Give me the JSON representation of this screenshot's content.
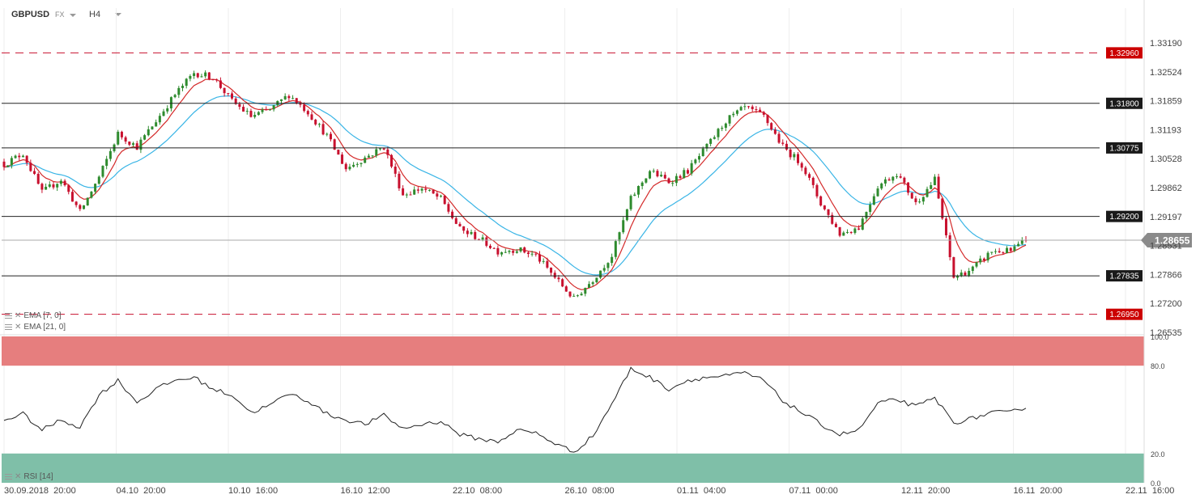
{
  "header": {
    "symbol": "GBPUSD",
    "market": "FX",
    "timeframe": "H4"
  },
  "indicators": {
    "ema_fast": "EMA [7, 0]",
    "ema_slow": "EMA [21, 0]",
    "rsi": "RSI [14]"
  },
  "colors": {
    "candle_up": "#2e8b2e",
    "candle_down": "#c8102e",
    "ema_fast": "#d42a2a",
    "ema_slow": "#3ab5e6",
    "level_dashed": "#c8102e",
    "level_solid": "#222222",
    "rsi_overbought": "#e67e7e",
    "rsi_oversold": "#7fbfa8"
  },
  "chart_data": {
    "type": "candlestick",
    "instrument": "GBPUSD",
    "timeframe": "H4",
    "price_axis": {
      "ylim": [
        1.26535,
        1.3319
      ],
      "ticks": [
        "1.33190",
        "1.32524",
        "1.31859",
        "1.31193",
        "1.30528",
        "1.29862",
        "1.29197",
        "1.28531",
        "1.27866",
        "1.27200",
        "1.26535"
      ]
    },
    "time_axis": {
      "ticks": [
        "30.09.2018  20:00",
        "04.10  20:00",
        "10.10  16:00",
        "16.10  12:00",
        "22.10  08:00",
        "26.10  08:00",
        "01.11  04:00",
        "07.11  00:00",
        "12.11  20:00",
        "16.11  20:00",
        "22.11  16:00"
      ]
    },
    "current_price": "1.28655",
    "levels": [
      {
        "price": "1.32960",
        "style": "dashed"
      },
      {
        "price": "1.31800",
        "style": "solid"
      },
      {
        "price": "1.30775",
        "style": "solid"
      },
      {
        "price": "1.29200",
        "style": "solid"
      },
      {
        "price": "1.27835",
        "style": "solid"
      },
      {
        "price": "1.26950",
        "style": "dashed"
      }
    ],
    "close_anchors": [
      [
        0,
        1.304
      ],
      [
        5,
        1.3065
      ],
      [
        10,
        1.2975
      ],
      [
        15,
        1.3005
      ],
      [
        20,
        1.293
      ],
      [
        25,
        1.301
      ],
      [
        30,
        1.311
      ],
      [
        35,
        1.308
      ],
      [
        40,
        1.314
      ],
      [
        45,
        1.32
      ],
      [
        50,
        1.325
      ],
      [
        55,
        1.324
      ],
      [
        60,
        1.3185
      ],
      [
        65,
        1.315
      ],
      [
        70,
        1.3165
      ],
      [
        75,
        1.32
      ],
      [
        80,
        1.316
      ],
      [
        85,
        1.3105
      ],
      [
        90,
        1.303
      ],
      [
        95,
        1.3055
      ],
      [
        100,
        1.308
      ],
      [
        105,
        1.297
      ],
      [
        110,
        1.2985
      ],
      [
        115,
        1.296
      ],
      [
        120,
        1.289
      ],
      [
        125,
        1.287
      ],
      [
        130,
        1.284
      ],
      [
        135,
        1.2845
      ],
      [
        140,
        1.283
      ],
      [
        145,
        1.278
      ],
      [
        150,
        1.273
      ],
      [
        155,
        1.2775
      ],
      [
        160,
        1.283
      ],
      [
        165,
        1.296
      ],
      [
        170,
        1.3025
      ],
      [
        175,
        1.3
      ],
      [
        180,
        1.3025
      ],
      [
        185,
        1.308
      ],
      [
        190,
        1.314
      ],
      [
        195,
        1.317
      ],
      [
        200,
        1.315
      ],
      [
        205,
        1.308
      ],
      [
        210,
        1.304
      ],
      [
        215,
        1.295
      ],
      [
        220,
        1.288
      ],
      [
        225,
        1.2895
      ],
      [
        230,
        1.299
      ],
      [
        235,
        1.302
      ],
      [
        240,
        1.295
      ],
      [
        245,
        1.3005
      ],
      [
        250,
        1.278
      ],
      [
        255,
        1.28
      ],
      [
        260,
        1.284
      ],
      [
        265,
        1.284
      ],
      [
        269,
        1.2866
      ]
    ],
    "rsi": {
      "levels": [
        "100.0",
        "80.0",
        "20.0",
        "0.0"
      ],
      "overbought": 80,
      "oversold": 20,
      "anchors": [
        [
          0,
          43
        ],
        [
          5,
          47
        ],
        [
          10,
          36
        ],
        [
          15,
          43
        ],
        [
          20,
          38
        ],
        [
          25,
          60
        ],
        [
          30,
          70
        ],
        [
          35,
          55
        ],
        [
          40,
          64
        ],
        [
          45,
          70
        ],
        [
          50,
          72
        ],
        [
          55,
          64
        ],
        [
          60,
          60
        ],
        [
          65,
          48
        ],
        [
          70,
          53
        ],
        [
          75,
          61
        ],
        [
          80,
          56
        ],
        [
          85,
          47
        ],
        [
          90,
          43
        ],
        [
          95,
          40
        ],
        [
          100,
          46
        ],
        [
          105,
          37
        ],
        [
          110,
          40
        ],
        [
          115,
          42
        ],
        [
          120,
          33
        ],
        [
          125,
          30
        ],
        [
          130,
          28
        ],
        [
          135,
          36
        ],
        [
          140,
          34
        ],
        [
          145,
          27
        ],
        [
          150,
          21
        ],
        [
          155,
          32
        ],
        [
          160,
          54
        ],
        [
          165,
          78
        ],
        [
          170,
          72
        ],
        [
          175,
          64
        ],
        [
          180,
          70
        ],
        [
          185,
          72
        ],
        [
          190,
          73
        ],
        [
          195,
          75
        ],
        [
          200,
          70
        ],
        [
          205,
          56
        ],
        [
          210,
          48
        ],
        [
          215,
          40
        ],
        [
          220,
          33
        ],
        [
          225,
          36
        ],
        [
          230,
          54
        ],
        [
          235,
          57
        ],
        [
          240,
          52
        ],
        [
          245,
          58
        ],
        [
          250,
          41
        ],
        [
          255,
          44
        ],
        [
          260,
          48
        ],
        [
          265,
          48
        ],
        [
          269,
          52
        ]
      ]
    },
    "num_candles": 270
  }
}
